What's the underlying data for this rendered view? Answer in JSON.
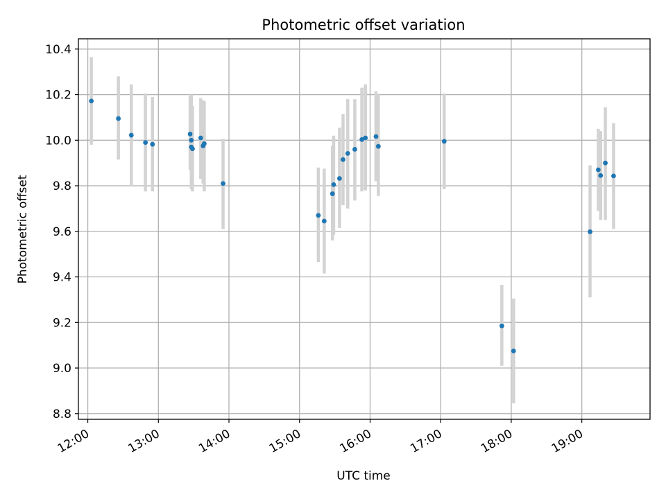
{
  "chart_data": {
    "type": "scatter",
    "title": "Photometric offset variation",
    "xlabel": "UTC time",
    "ylabel": "Photometric offset",
    "x_ticks": [
      "12:00",
      "13:00",
      "14:00",
      "15:00",
      "16:00",
      "17:00",
      "18:00",
      "19:00"
    ],
    "y_ticks": [
      "8.8",
      "9.0",
      "9.2",
      "9.4",
      "9.6",
      "9.8",
      "10.0",
      "10.2",
      "10.4"
    ],
    "xlim": [
      "11:52",
      "19:58"
    ],
    "ylim": [
      8.775,
      10.445
    ],
    "grid": true,
    "error_bar_color": "#d3d3d3",
    "marker_color": "#1f77b4",
    "points": [
      {
        "time": "12:03",
        "y": 10.172,
        "lo": 9.98,
        "hi": 10.365
      },
      {
        "time": "12:26",
        "y": 10.095,
        "lo": 9.915,
        "hi": 10.28
      },
      {
        "time": "12:37",
        "y": 10.022,
        "lo": 9.8,
        "hi": 10.245
      },
      {
        "time": "12:49",
        "y": 9.99,
        "lo": 9.775,
        "hi": 10.205
      },
      {
        "time": "12:55",
        "y": 9.982,
        "lo": 9.775,
        "hi": 10.19
      },
      {
        "time": "13:27",
        "y": 10.027,
        "lo": 9.87,
        "hi": 10.195
      },
      {
        "time": "13:28",
        "y": 10.0,
        "lo": 9.8,
        "hi": 10.2
      },
      {
        "time": "13:28",
        "y": 9.97,
        "lo": 9.785,
        "hi": 10.16
      },
      {
        "time": "13:29",
        "y": 9.962,
        "lo": 9.775,
        "hi": 10.15
      },
      {
        "time": "13:36",
        "y": 10.01,
        "lo": 9.83,
        "hi": 10.185
      },
      {
        "time": "13:38",
        "y": 9.975,
        "lo": 9.81,
        "hi": 10.175
      },
      {
        "time": "13:39",
        "y": 9.985,
        "lo": 9.775,
        "hi": 10.17
      },
      {
        "time": "13:55",
        "y": 9.81,
        "lo": 9.61,
        "hi": 10.005
      },
      {
        "time": "15:16",
        "y": 9.67,
        "lo": 9.465,
        "hi": 9.88
      },
      {
        "time": "15:21",
        "y": 9.645,
        "lo": 9.415,
        "hi": 9.875
      },
      {
        "time": "15:28",
        "y": 9.765,
        "lo": 9.56,
        "hi": 9.975
      },
      {
        "time": "15:29",
        "y": 9.805,
        "lo": 9.585,
        "hi": 10.02
      },
      {
        "time": "15:34",
        "y": 9.832,
        "lo": 9.615,
        "hi": 10.055
      },
      {
        "time": "15:37",
        "y": 9.915,
        "lo": 9.715,
        "hi": 10.115
      },
      {
        "time": "15:41",
        "y": 9.942,
        "lo": 9.7,
        "hi": 10.18
      },
      {
        "time": "15:47",
        "y": 9.96,
        "lo": 9.735,
        "hi": 10.18
      },
      {
        "time": "15:53",
        "y": 10.003,
        "lo": 9.775,
        "hi": 10.23
      },
      {
        "time": "15:56",
        "y": 10.01,
        "lo": 9.78,
        "hi": 10.245
      },
      {
        "time": "16:05",
        "y": 10.016,
        "lo": 9.82,
        "hi": 10.215
      },
      {
        "time": "16:07",
        "y": 9.973,
        "lo": 9.755,
        "hi": 10.2
      },
      {
        "time": "17:03",
        "y": 9.995,
        "lo": 9.785,
        "hi": 10.205
      },
      {
        "time": "17:52",
        "y": 9.185,
        "lo": 9.01,
        "hi": 9.365
      },
      {
        "time": "18:02",
        "y": 9.075,
        "lo": 8.845,
        "hi": 9.305
      },
      {
        "time": "19:07",
        "y": 9.598,
        "lo": 9.31,
        "hi": 9.89
      },
      {
        "time": "19:14",
        "y": 9.87,
        "lo": 9.69,
        "hi": 10.05
      },
      {
        "time": "19:16",
        "y": 9.845,
        "lo": 9.65,
        "hi": 10.04
      },
      {
        "time": "19:20",
        "y": 9.9,
        "lo": 9.65,
        "hi": 10.145
      },
      {
        "time": "19:27",
        "y": 9.843,
        "lo": 9.61,
        "hi": 10.075
      }
    ]
  }
}
